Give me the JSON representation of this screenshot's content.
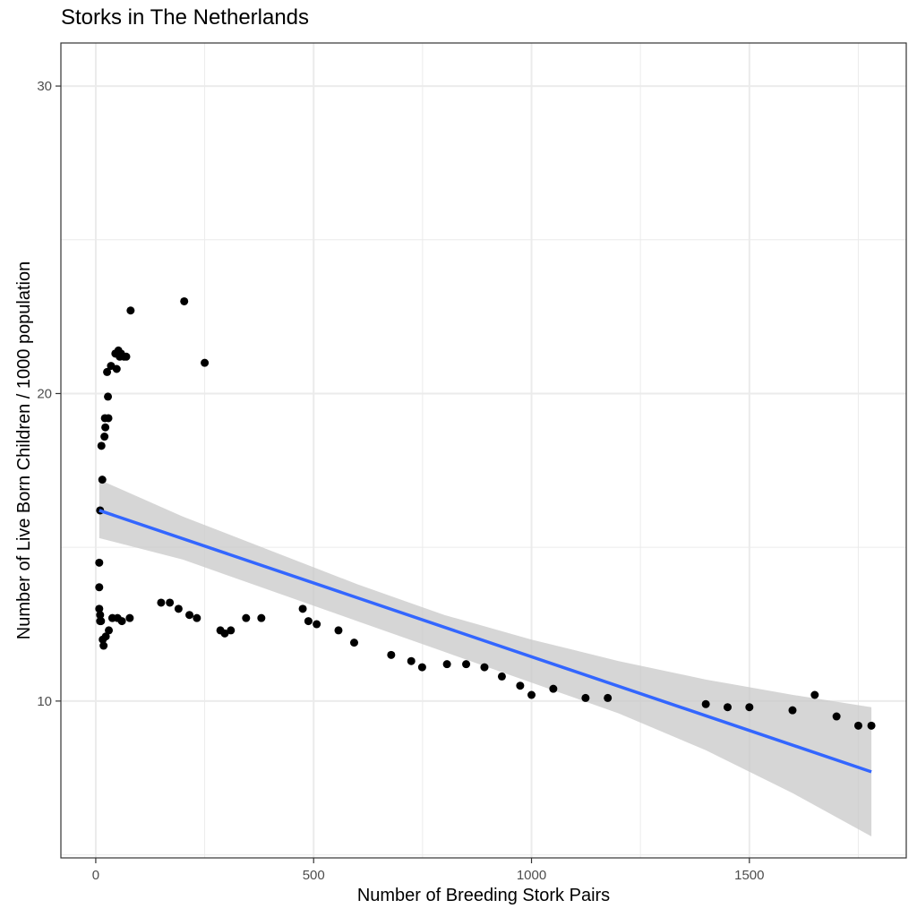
{
  "chart_data": {
    "type": "scatter",
    "title": "Storks in The Netherlands",
    "xlabel": "Number of Breeding Stork Pairs",
    "ylabel": "Number of Live Born Children / 1000 population",
    "xlim": [
      -80,
      1860
    ],
    "ylim": [
      4.9,
      31.4
    ],
    "x_ticks": [
      0,
      500,
      1000,
      1500
    ],
    "x_tick_labels": [
      "0",
      "500",
      "1000",
      "1500"
    ],
    "y_ticks": [
      10,
      20,
      30
    ],
    "y_tick_labels": [
      "10",
      "20",
      "30"
    ],
    "grid": true,
    "legend": "none",
    "colors": {
      "points": "#000000",
      "fit_line": "#3366ff",
      "ribbon": "#c8c8c8",
      "grid": "#ebebeb",
      "panel_border": "#333333"
    },
    "points": [
      {
        "x": 8,
        "y": 14.5
      },
      {
        "x": 8,
        "y": 13.7
      },
      {
        "x": 10,
        "y": 16.2
      },
      {
        "x": 8,
        "y": 13.0
      },
      {
        "x": 10,
        "y": 12.8
      },
      {
        "x": 10,
        "y": 12.6
      },
      {
        "x": 12,
        "y": 12.6
      },
      {
        "x": 13,
        "y": 18.3
      },
      {
        "x": 15,
        "y": 17.2
      },
      {
        "x": 16,
        "y": 12.0
      },
      {
        "x": 18,
        "y": 11.8
      },
      {
        "x": 20,
        "y": 18.6
      },
      {
        "x": 21,
        "y": 19.2
      },
      {
        "x": 22,
        "y": 18.9
      },
      {
        "x": 23,
        "y": 12.1
      },
      {
        "x": 26,
        "y": 20.7
      },
      {
        "x": 28,
        "y": 19.9
      },
      {
        "x": 29,
        "y": 19.2
      },
      {
        "x": 30,
        "y": 12.3
      },
      {
        "x": 35,
        "y": 20.9
      },
      {
        "x": 38,
        "y": 12.7
      },
      {
        "x": 45,
        "y": 21.3
      },
      {
        "x": 48,
        "y": 20.8
      },
      {
        "x": 50,
        "y": 12.7
      },
      {
        "x": 52,
        "y": 21.4
      },
      {
        "x": 55,
        "y": 21.2
      },
      {
        "x": 58,
        "y": 21.3
      },
      {
        "x": 60,
        "y": 12.6
      },
      {
        "x": 65,
        "y": 21.2
      },
      {
        "x": 70,
        "y": 21.2
      },
      {
        "x": 78,
        "y": 12.7
      },
      {
        "x": 80,
        "y": 22.7
      },
      {
        "x": 150,
        "y": 13.2
      },
      {
        "x": 170,
        "y": 13.2
      },
      {
        "x": 190,
        "y": 13.0
      },
      {
        "x": 203,
        "y": 23.0
      },
      {
        "x": 215,
        "y": 12.8
      },
      {
        "x": 232,
        "y": 12.7
      },
      {
        "x": 250,
        "y": 21.0
      },
      {
        "x": 286,
        "y": 12.3
      },
      {
        "x": 296,
        "y": 12.2
      },
      {
        "x": 310,
        "y": 12.3
      },
      {
        "x": 345,
        "y": 12.7
      },
      {
        "x": 380,
        "y": 12.7
      },
      {
        "x": 475,
        "y": 13.0
      },
      {
        "x": 488,
        "y": 12.6
      },
      {
        "x": 507,
        "y": 12.5
      },
      {
        "x": 557,
        "y": 12.3
      },
      {
        "x": 593,
        "y": 11.9
      },
      {
        "x": 678,
        "y": 11.5
      },
      {
        "x": 724,
        "y": 11.3
      },
      {
        "x": 749,
        "y": 11.1
      },
      {
        "x": 806,
        "y": 11.2
      },
      {
        "x": 850,
        "y": 11.2
      },
      {
        "x": 892,
        "y": 11.1
      },
      {
        "x": 932,
        "y": 10.8
      },
      {
        "x": 974,
        "y": 10.5
      },
      {
        "x": 1000,
        "y": 10.2
      },
      {
        "x": 1050,
        "y": 10.4
      },
      {
        "x": 1124,
        "y": 10.1
      },
      {
        "x": 1175,
        "y": 10.1
      },
      {
        "x": 1400,
        "y": 9.9
      },
      {
        "x": 1450,
        "y": 9.8
      },
      {
        "x": 1500,
        "y": 9.8
      },
      {
        "x": 1599,
        "y": 9.7
      },
      {
        "x": 1650,
        "y": 10.2
      },
      {
        "x": 1700,
        "y": 9.5
      },
      {
        "x": 1750,
        "y": 9.2
      },
      {
        "x": 1780,
        "y": 9.2
      }
    ],
    "fit_line": {
      "x": [
        8,
        1780
      ],
      "y": [
        16.2,
        7.7
      ]
    },
    "confidence_band": {
      "x": [
        8,
        200,
        400,
        600,
        800,
        1000,
        1200,
        1400,
        1600,
        1780
      ],
      "upper": [
        17.2,
        16.0,
        14.9,
        13.8,
        12.8,
        12.0,
        11.3,
        10.7,
        10.2,
        9.8
      ],
      "lower": [
        15.3,
        14.6,
        13.6,
        12.6,
        11.6,
        10.6,
        9.6,
        8.4,
        7.0,
        5.6
      ]
    }
  }
}
